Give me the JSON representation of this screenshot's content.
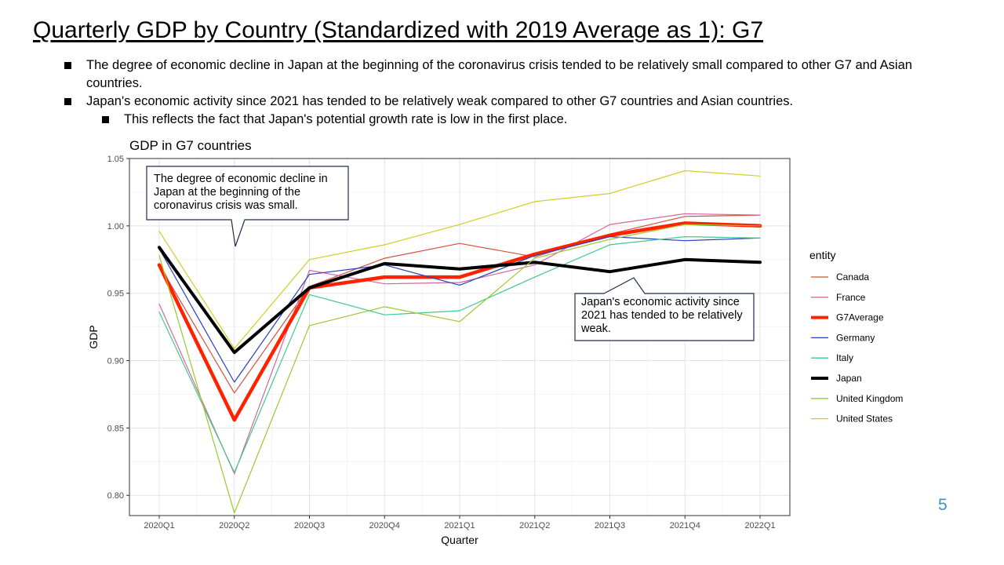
{
  "slide": {
    "title": "Quarterly GDP by Country (Standardized  with 2019 Average  as 1): G7",
    "bullets": [
      "The degree of economic decline in Japan at the beginning of the coronavirus crisis tended to be relatively small compared to other G7 and Asian countries.",
      "Japan's economic activity since 2021 has tended to be relatively weak compared to other G7 countries and Asian countries."
    ],
    "sub_bullets": [
      "This reflects the fact that Japan's potential growth rate is low in the first place."
    ],
    "page_number": "5"
  },
  "callouts": {
    "decline": " The degree of economic decline in Japan at the beginning of the coronavirus  crisis was small.",
    "weak": "Japan's economic activity since 2021 has tended to be relatively weak."
  },
  "chart_data": {
    "type": "line",
    "title": "GDP in G7 countries",
    "xlabel": "Quarter",
    "ylabel": "GDP",
    "categories": [
      "2020Q1",
      "2020Q2",
      "2020Q3",
      "2020Q4",
      "2021Q1",
      "2021Q2",
      "2021Q3",
      "2021Q4",
      "2022Q1"
    ],
    "ylim": [
      0.785,
      1.05
    ],
    "yticks": [
      0.8,
      0.85,
      0.9,
      0.95,
      1.0,
      1.05
    ],
    "ytick_labels": [
      "0.80",
      "0.85",
      "0.90",
      "0.95",
      "1.00",
      "1.05"
    ],
    "grid": true,
    "legend_title": "entity",
    "legend_position": "right",
    "series": [
      {
        "name": "Canada",
        "color": "#d4503c",
        "width": 1.2,
        "values": [
          0.971,
          0.876,
          0.955,
          0.976,
          0.987,
          0.977,
          0.994,
          1.007,
          1.008
        ]
      },
      {
        "name": "France",
        "color": "#d4679f",
        "width": 1.2,
        "values": [
          0.942,
          0.816,
          0.967,
          0.957,
          0.958,
          0.971,
          1.001,
          1.009,
          1.008
        ]
      },
      {
        "name": "G7Average",
        "color": "#ff2200",
        "width": 4.5,
        "values": [
          0.971,
          0.856,
          0.954,
          0.962,
          0.962,
          0.979,
          0.993,
          1.002,
          1.0
        ]
      },
      {
        "name": "Germany",
        "color": "#2a3fbf",
        "width": 1.2,
        "values": [
          0.983,
          0.884,
          0.964,
          0.971,
          0.956,
          0.978,
          0.992,
          0.989,
          0.991
        ]
      },
      {
        "name": "Italy",
        "color": "#3fc98a",
        "width": 1.2,
        "values": [
          0.936,
          0.817,
          0.949,
          0.934,
          0.937,
          0.962,
          0.986,
          0.992,
          0.991
        ]
      },
      {
        "name": "Japan",
        "color": "#000000",
        "width": 4.0,
        "values": [
          0.984,
          0.906,
          0.954,
          0.972,
          0.968,
          0.973,
          0.966,
          0.975,
          0.973
        ]
      },
      {
        "name": "United Kingdom",
        "color": "#99c832",
        "width": 1.2,
        "values": [
          0.978,
          0.787,
          0.926,
          0.94,
          0.929,
          0.976,
          0.99,
          1.001,
          1.0
        ]
      },
      {
        "name": "United States",
        "color": "#d2cd24",
        "width": 1.2,
        "values": [
          0.996,
          0.909,
          0.975,
          0.986,
          1.001,
          1.018,
          1.024,
          1.041,
          1.037
        ]
      }
    ]
  }
}
